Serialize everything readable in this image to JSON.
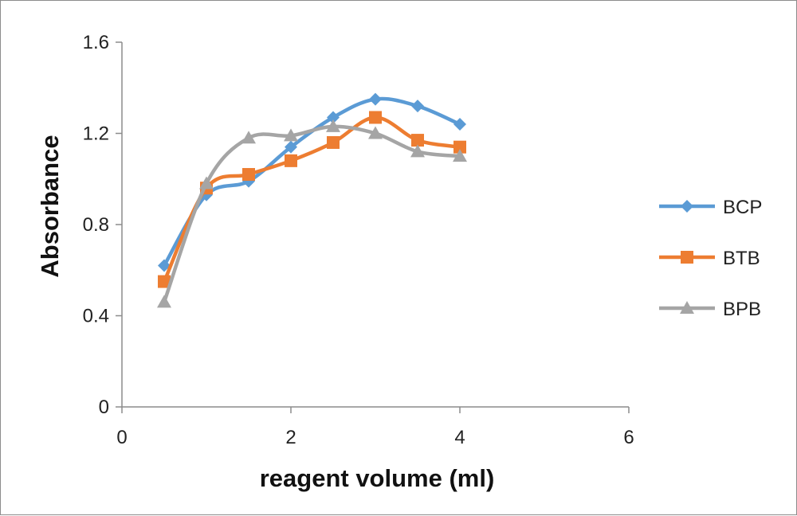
{
  "chart_data": {
    "type": "line",
    "title": "",
    "xlabel": "reagent volume (ml)",
    "ylabel": "Absorbance",
    "xlim": [
      0,
      6
    ],
    "ylim": [
      0,
      1.6
    ],
    "x_ticks": [
      0,
      2,
      4,
      6
    ],
    "y_ticks": [
      0,
      0.4,
      0.8,
      1.2,
      1.6
    ],
    "x_tick_labels": [
      "0",
      "2",
      "4",
      "6"
    ],
    "y_tick_labels": [
      "0",
      "0.4",
      "0.8",
      "1.2",
      "1.6"
    ],
    "grid": false,
    "legend_position": "right",
    "smooth": true,
    "series": [
      {
        "name": "BCP",
        "color": "#5b9bd5",
        "marker": "diamond",
        "x": [
          0.5,
          1.0,
          1.5,
          2.0,
          2.5,
          3.0,
          3.5,
          4.0
        ],
        "y": [
          0.62,
          0.93,
          0.99,
          1.14,
          1.27,
          1.35,
          1.32,
          1.24
        ]
      },
      {
        "name": "BTB",
        "color": "#ed7d31",
        "marker": "square",
        "x": [
          0.5,
          1.0,
          1.5,
          2.0,
          2.5,
          3.0,
          3.5,
          4.0
        ],
        "y": [
          0.55,
          0.96,
          1.02,
          1.08,
          1.16,
          1.27,
          1.17,
          1.14
        ]
      },
      {
        "name": "BPB",
        "color": "#a5a5a5",
        "marker": "triangle",
        "x": [
          0.5,
          1.0,
          1.5,
          2.0,
          2.5,
          3.0,
          3.5,
          4.0
        ],
        "y": [
          0.46,
          0.98,
          1.18,
          1.19,
          1.23,
          1.2,
          1.12,
          1.1
        ]
      }
    ]
  }
}
